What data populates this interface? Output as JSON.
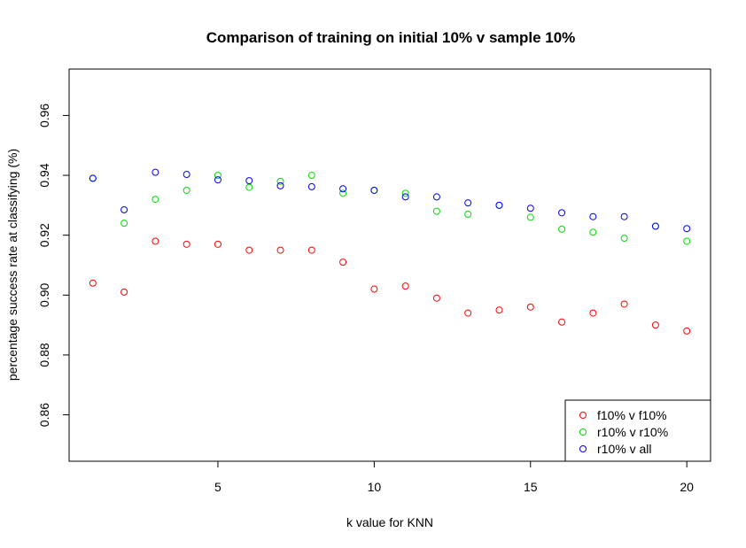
{
  "chart_data": {
    "type": "scatter",
    "title": "Comparison of training on initial 10% v sample 10%",
    "xlabel": "k value for KNN",
    "ylabel": "percentage success rate at classifying (%)",
    "xlim": [
      0.24,
      20.76
    ],
    "ylim": [
      0.8445,
      0.9755
    ],
    "xticks": [
      5,
      10,
      15,
      20
    ],
    "yticks": [
      0.86,
      0.88,
      0.9,
      0.92,
      0.94,
      0.96
    ],
    "ytick_labels": [
      "0.86",
      "0.88",
      "0.90",
      "0.92",
      "0.94",
      "0.96"
    ],
    "grid": false,
    "legend_position": "bottom-right",
    "x": [
      1,
      2,
      3,
      4,
      5,
      6,
      7,
      8,
      9,
      10,
      11,
      12,
      13,
      14,
      15,
      16,
      17,
      18,
      19,
      20
    ],
    "series": [
      {
        "name": "f10% v f10%",
        "color": "#ff0000",
        "values": [
          0.904,
          0.901,
          0.918,
          0.917,
          0.917,
          0.915,
          0.915,
          0.915,
          0.911,
          0.902,
          0.903,
          0.899,
          0.894,
          0.895,
          0.896,
          0.891,
          0.894,
          0.897,
          0.89,
          0.888
        ]
      },
      {
        "name": "r10% v r10%",
        "color": "#00dd00",
        "values": [
          0.939,
          0.924,
          0.932,
          0.935,
          0.94,
          0.936,
          0.938,
          0.94,
          0.934,
          0.935,
          0.934,
          0.928,
          0.927,
          0.93,
          0.926,
          0.922,
          0.921,
          0.919,
          0.923,
          0.918
        ]
      },
      {
        "name": "r10% v all",
        "color": "#0000ff",
        "values": [
          0.939,
          0.9285,
          0.941,
          0.9403,
          0.9385,
          0.9382,
          0.9365,
          0.9362,
          0.9355,
          0.935,
          0.9328,
          0.9328,
          0.9308,
          0.93,
          0.929,
          0.9275,
          0.9262,
          0.9262,
          0.923,
          0.9222
        ]
      }
    ]
  }
}
